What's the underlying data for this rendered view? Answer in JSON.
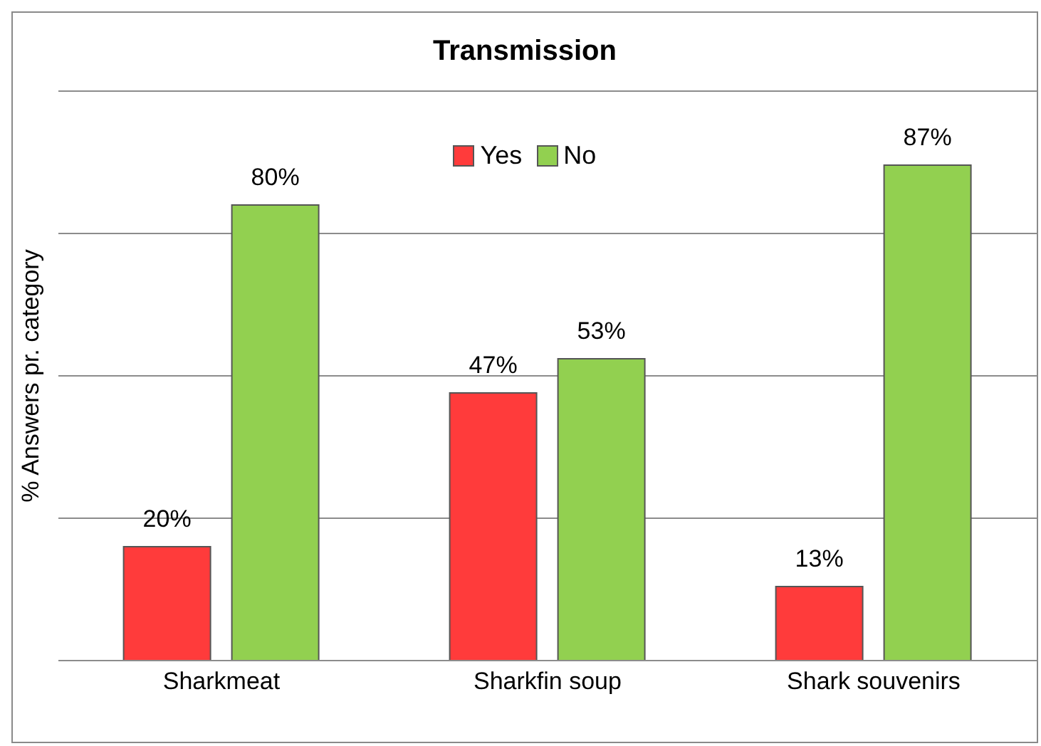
{
  "chart_data": {
    "type": "bar",
    "title": "Transmission",
    "ylabel": "% Answers pr. category",
    "categories": [
      "Sharkmeat",
      "Sharkfin soup",
      "Shark souvenirs"
    ],
    "series": [
      {
        "name": "Yes",
        "color": "#ff3b3b",
        "values": [
          20,
          47,
          13
        ],
        "value_labels": [
          "20%",
          "47%",
          "13%"
        ]
      },
      {
        "name": "No",
        "color": "#92d050",
        "values": [
          80,
          53,
          87
        ],
        "value_labels": [
          "80%",
          "53%",
          "87%"
        ]
      }
    ],
    "ylim": [
      0,
      100
    ],
    "yticks": [
      {
        "value": 0,
        "label": null
      },
      {
        "value": 25,
        "label": null
      },
      {
        "value": 50,
        "label": null
      },
      {
        "value": 75,
        "label": null
      },
      {
        "value": 100,
        "label": null
      }
    ],
    "tick_labels": "x",
    "grid": "y",
    "legend": "top"
  }
}
